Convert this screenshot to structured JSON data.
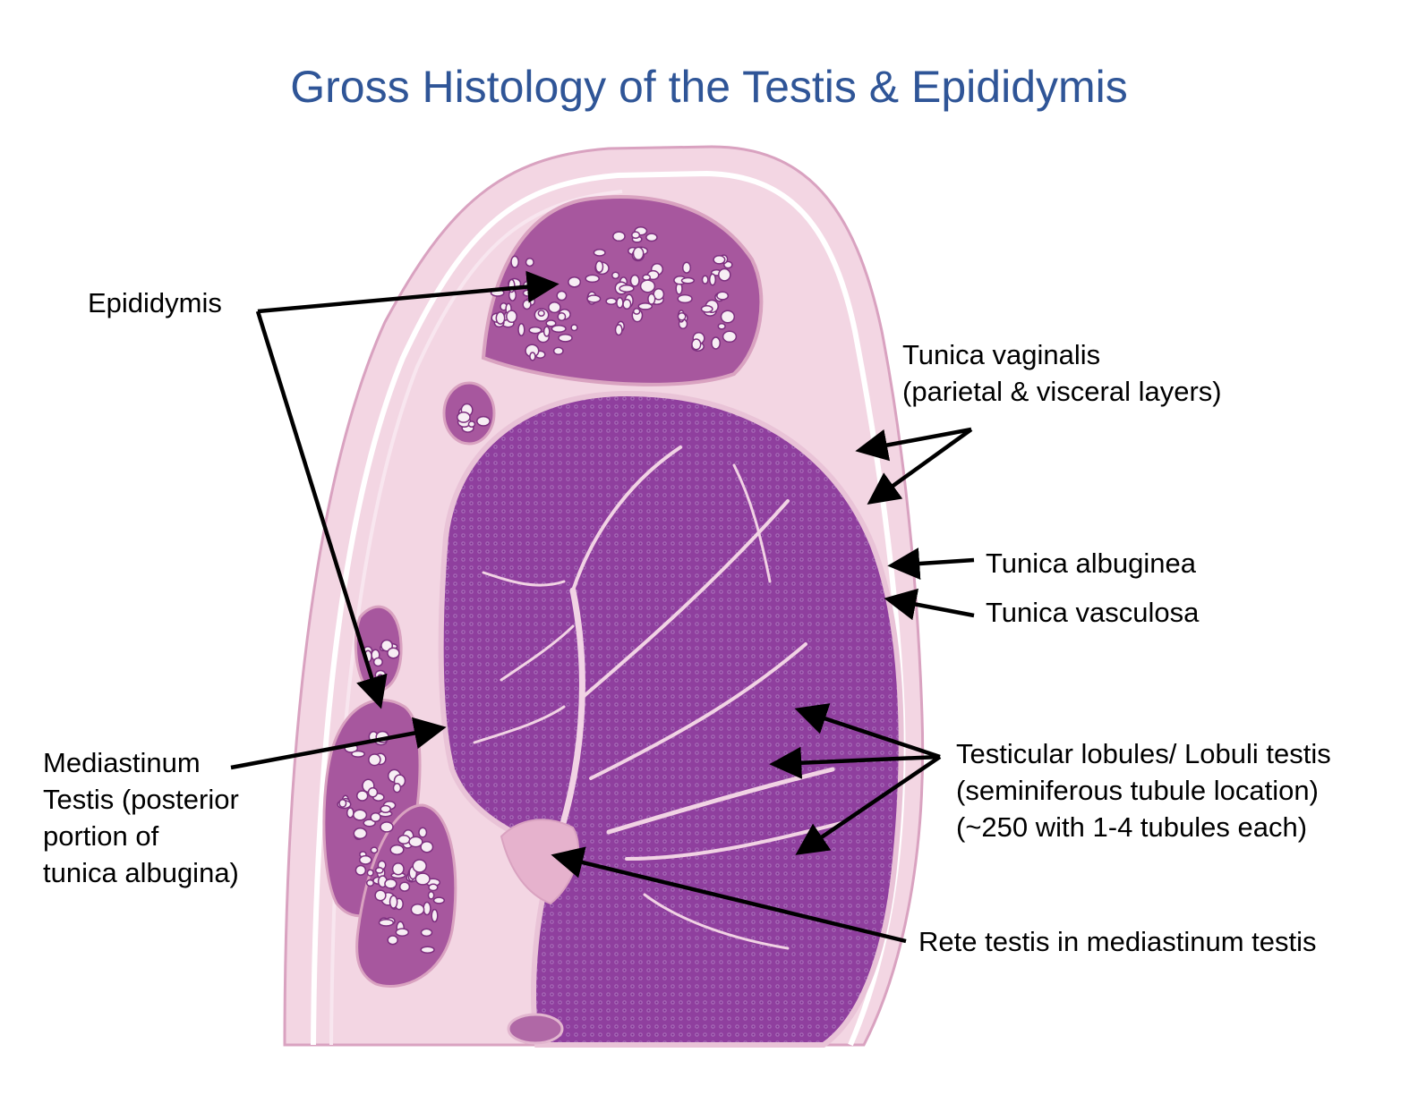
{
  "title": "Gross Histology of the Testis & Epididymis",
  "colors": {
    "title": "#2f5597",
    "section_background": "#f3d6e3",
    "stroma": "#e8b6cf",
    "parenchyma": "#8f3f9e",
    "tubule_tissue": "#9c4a9f",
    "lumen": "#f7eef4",
    "arrow": "#000000"
  },
  "labels": {
    "epididymis": "Epididymis",
    "tunica_vaginalis": [
      "Tunica vaginalis",
      "(parietal & visceral layers)"
    ],
    "tunica_albuginea": "Tunica albuginea",
    "tunica_vasculosa": "Tunica vasculosa",
    "mediastinum": [
      "Mediastinum",
      "Testis (posterior",
      "portion of",
      "tunica albugina)"
    ],
    "lobules": [
      "Testicular lobules/ Lobuli testis",
      "(seminiferous tubule location)",
      "(~250 with 1-4 tubules each)"
    ],
    "rete": "Rete testis in mediastinum testis"
  }
}
